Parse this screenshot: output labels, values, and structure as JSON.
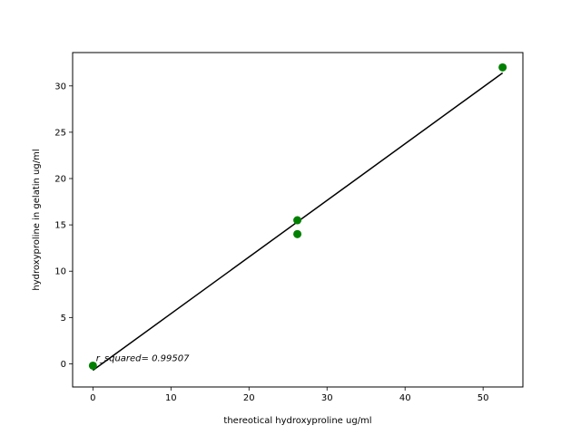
{
  "chart_data": {
    "type": "scatter",
    "xlabel": "thereotical hydroxyproline ug/ml",
    "ylabel": "hydroxyproline in gelatin ug/ml",
    "xlim": [
      -2.6,
      55.1
    ],
    "ylim": [
      -2.5,
      33.6
    ],
    "x_ticks": [
      0,
      10,
      20,
      30,
      40,
      50
    ],
    "y_ticks": [
      0,
      5,
      10,
      15,
      20,
      25,
      30
    ],
    "grid": false,
    "series": [
      {
        "kind": "points",
        "color": "#008000",
        "x": [
          0,
          26.2,
          26.2,
          52.5
        ],
        "y": [
          -0.2,
          15.5,
          14.0,
          32.0
        ]
      },
      {
        "kind": "fit-line",
        "color": "#000000",
        "x": [
          0,
          52.5
        ],
        "y": [
          -0.7,
          31.4
        ]
      }
    ],
    "annotation": {
      "text": "r_squared= 0.99507",
      "x": 0.4,
      "y": 0.3
    }
  }
}
